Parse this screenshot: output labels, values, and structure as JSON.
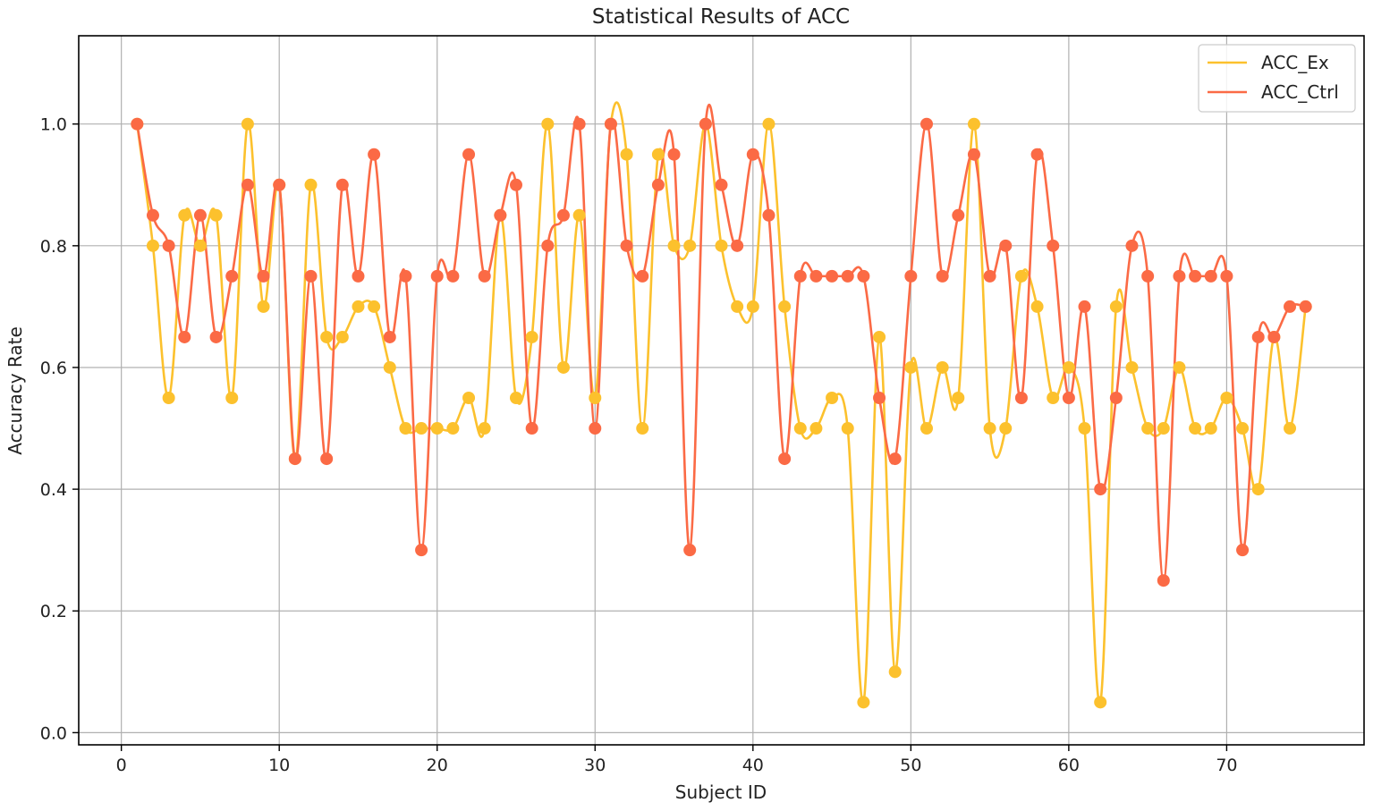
{
  "chart_data": {
    "type": "line",
    "title": "Statistical Results of ACC",
    "xlabel": "Subject ID",
    "ylabel": "Accuracy Rate",
    "xlim": [
      -2.7,
      78.7
    ],
    "ylim": [
      -0.02,
      1.145
    ],
    "xticks": [
      0,
      10,
      20,
      30,
      40,
      50,
      60,
      70
    ],
    "yticks": [
      0.0,
      0.2,
      0.4,
      0.6,
      0.8,
      1.0
    ],
    "xtick_labels": [
      "0",
      "10",
      "20",
      "30",
      "40",
      "50",
      "60",
      "70"
    ],
    "ytick_labels": [
      "0.0",
      "0.2",
      "0.4",
      "0.6",
      "0.8",
      "1.0"
    ],
    "grid": true,
    "legend_position": "top-right",
    "smooth": true,
    "x": [
      1,
      2,
      3,
      4,
      5,
      6,
      7,
      8,
      9,
      10,
      11,
      12,
      13,
      14,
      15,
      16,
      17,
      18,
      19,
      20,
      21,
      22,
      23,
      24,
      25,
      26,
      27,
      28,
      29,
      30,
      31,
      32,
      33,
      34,
      35,
      36,
      37,
      38,
      39,
      40,
      41,
      42,
      43,
      44,
      45,
      46,
      47,
      48,
      49,
      50,
      51,
      52,
      53,
      54,
      55,
      56,
      57,
      58,
      59,
      60,
      61,
      62,
      63,
      64,
      65,
      66,
      67,
      68,
      69,
      70,
      71,
      72,
      73,
      74,
      75
    ],
    "series": [
      {
        "name": "ACC_Ex",
        "color": "#fcc12d",
        "values": [
          1.0,
          0.8,
          0.55,
          0.85,
          0.8,
          0.85,
          0.55,
          1.0,
          0.7,
          0.9,
          0.45,
          0.9,
          0.65,
          0.65,
          0.7,
          0.7,
          0.6,
          0.5,
          0.5,
          0.5,
          0.5,
          0.55,
          0.5,
          0.85,
          0.55,
          0.65,
          1.0,
          0.6,
          0.85,
          0.55,
          1.0,
          0.95,
          0.5,
          0.95,
          0.8,
          0.8,
          1.0,
          0.8,
          0.7,
          0.7,
          1.0,
          0.7,
          0.5,
          0.5,
          0.55,
          0.5,
          0.05,
          0.65,
          0.1,
          0.6,
          0.5,
          0.6,
          0.55,
          1.0,
          0.5,
          0.5,
          0.75,
          0.7,
          0.55,
          0.6,
          0.5,
          0.05,
          0.7,
          0.6,
          0.5,
          0.5,
          0.6,
          0.5,
          0.5,
          0.55,
          0.5,
          0.4,
          0.65,
          0.5,
          0.7
        ]
      },
      {
        "name": "ACC_Ctrl",
        "color": "#fb6a45",
        "values": [
          1.0,
          0.85,
          0.8,
          0.65,
          0.85,
          0.65,
          0.75,
          0.9,
          0.75,
          0.9,
          0.45,
          0.75,
          0.45,
          0.9,
          0.75,
          0.95,
          0.65,
          0.75,
          0.3,
          0.75,
          0.75,
          0.95,
          0.75,
          0.85,
          0.9,
          0.5,
          0.8,
          0.85,
          1.0,
          0.5,
          1.0,
          0.8,
          0.75,
          0.9,
          0.95,
          0.3,
          1.0,
          0.9,
          0.8,
          0.95,
          0.85,
          0.45,
          0.75,
          0.75,
          0.75,
          0.75,
          0.75,
          0.55,
          0.45,
          0.75,
          1.0,
          0.75,
          0.85,
          0.95,
          0.75,
          0.8,
          0.55,
          0.95,
          0.8,
          0.55,
          0.7,
          0.4,
          0.55,
          0.8,
          0.75,
          0.25,
          0.75,
          0.75,
          0.75,
          0.75,
          0.3,
          0.65,
          0.65,
          0.7,
          0.7
        ]
      }
    ]
  }
}
